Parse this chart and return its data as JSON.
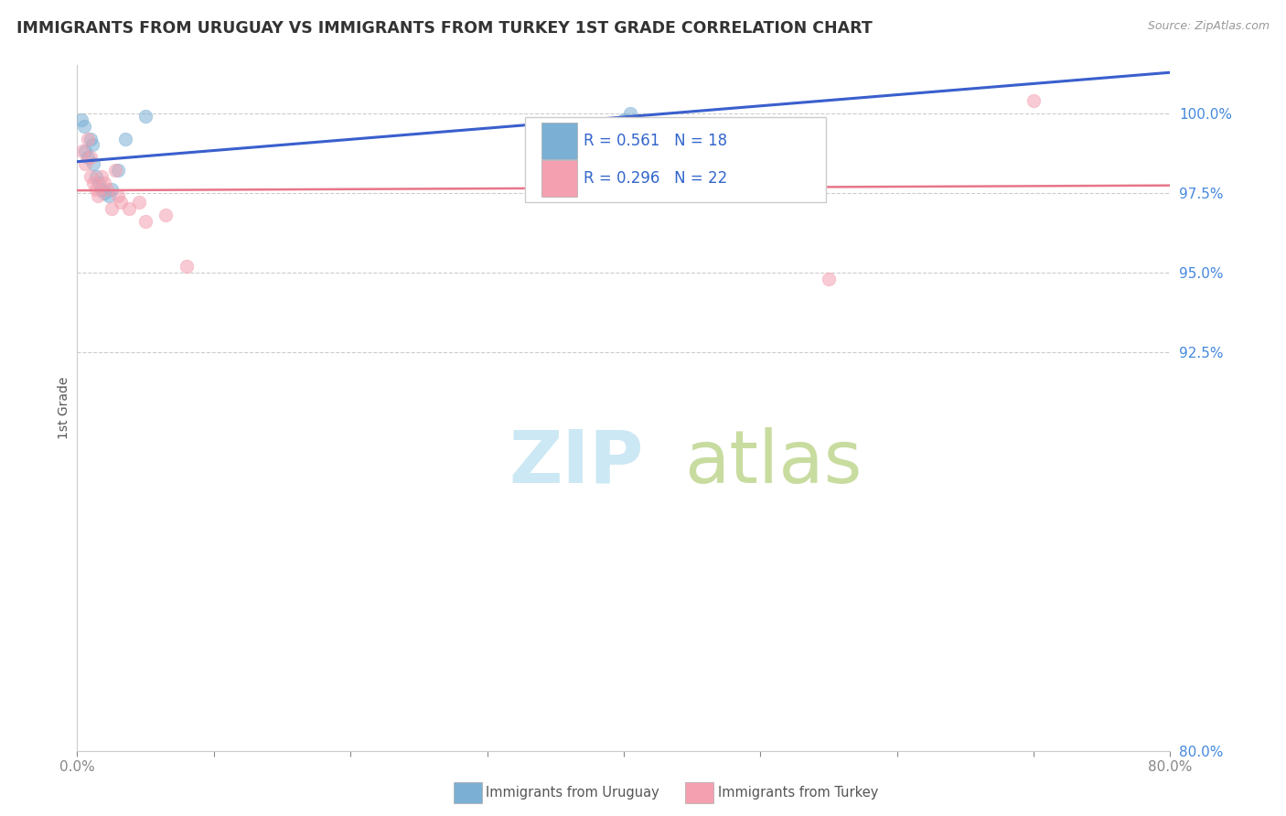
{
  "title": "IMMIGRANTS FROM URUGUAY VS IMMIGRANTS FROM TURKEY 1ST GRADE CORRELATION CHART",
  "source": "Source: ZipAtlas.com",
  "ylabel": "1st Grade",
  "legend_label_1": "Immigrants from Uruguay",
  "legend_label_2": "Immigrants from Turkey",
  "R1": 0.561,
  "N1": 18,
  "R2": 0.296,
  "N2": 22,
  "color1": "#7BAFD4",
  "color2": "#F4A0B0",
  "trendline1_color": "#3A5FCD",
  "trendline2_color": "#E8758A",
  "xlim": [
    0.0,
    80.0
  ],
  "ylim": [
    80.0,
    101.5
  ],
  "yticks": [
    80.0,
    92.5,
    95.0,
    97.5,
    100.0
  ],
  "xticks": [
    0.0,
    10.0,
    20.0,
    30.0,
    40.0,
    50.0,
    60.0,
    70.0,
    80.0
  ],
  "uruguay_x": [
    0.3,
    0.5,
    0.6,
    0.8,
    1.0,
    1.1,
    1.2,
    1.4,
    1.6,
    1.8,
    2.0,
    2.3,
    2.5,
    3.0,
    3.5,
    5.0,
    40.0,
    40.5
  ],
  "uruguay_y": [
    99.8,
    99.6,
    98.8,
    98.6,
    99.2,
    99.0,
    98.4,
    98.0,
    97.8,
    97.6,
    97.5,
    97.4,
    97.6,
    98.2,
    99.2,
    99.9,
    99.8,
    100.0
  ],
  "turkey_x": [
    0.4,
    0.6,
    0.8,
    1.0,
    1.0,
    1.2,
    1.4,
    1.5,
    1.8,
    2.0,
    2.2,
    2.5,
    2.8,
    3.0,
    3.2,
    3.8,
    4.5,
    5.0,
    6.5,
    8.0,
    55.0,
    70.0
  ],
  "turkey_y": [
    98.8,
    98.4,
    99.2,
    98.6,
    98.0,
    97.8,
    97.6,
    97.4,
    98.0,
    97.8,
    97.6,
    97.0,
    98.2,
    97.4,
    97.2,
    97.0,
    97.2,
    96.6,
    96.8,
    95.2,
    94.8,
    100.4
  ],
  "watermark_zip_color": "#cce8f4",
  "watermark_atlas_color": "#c8dca0"
}
